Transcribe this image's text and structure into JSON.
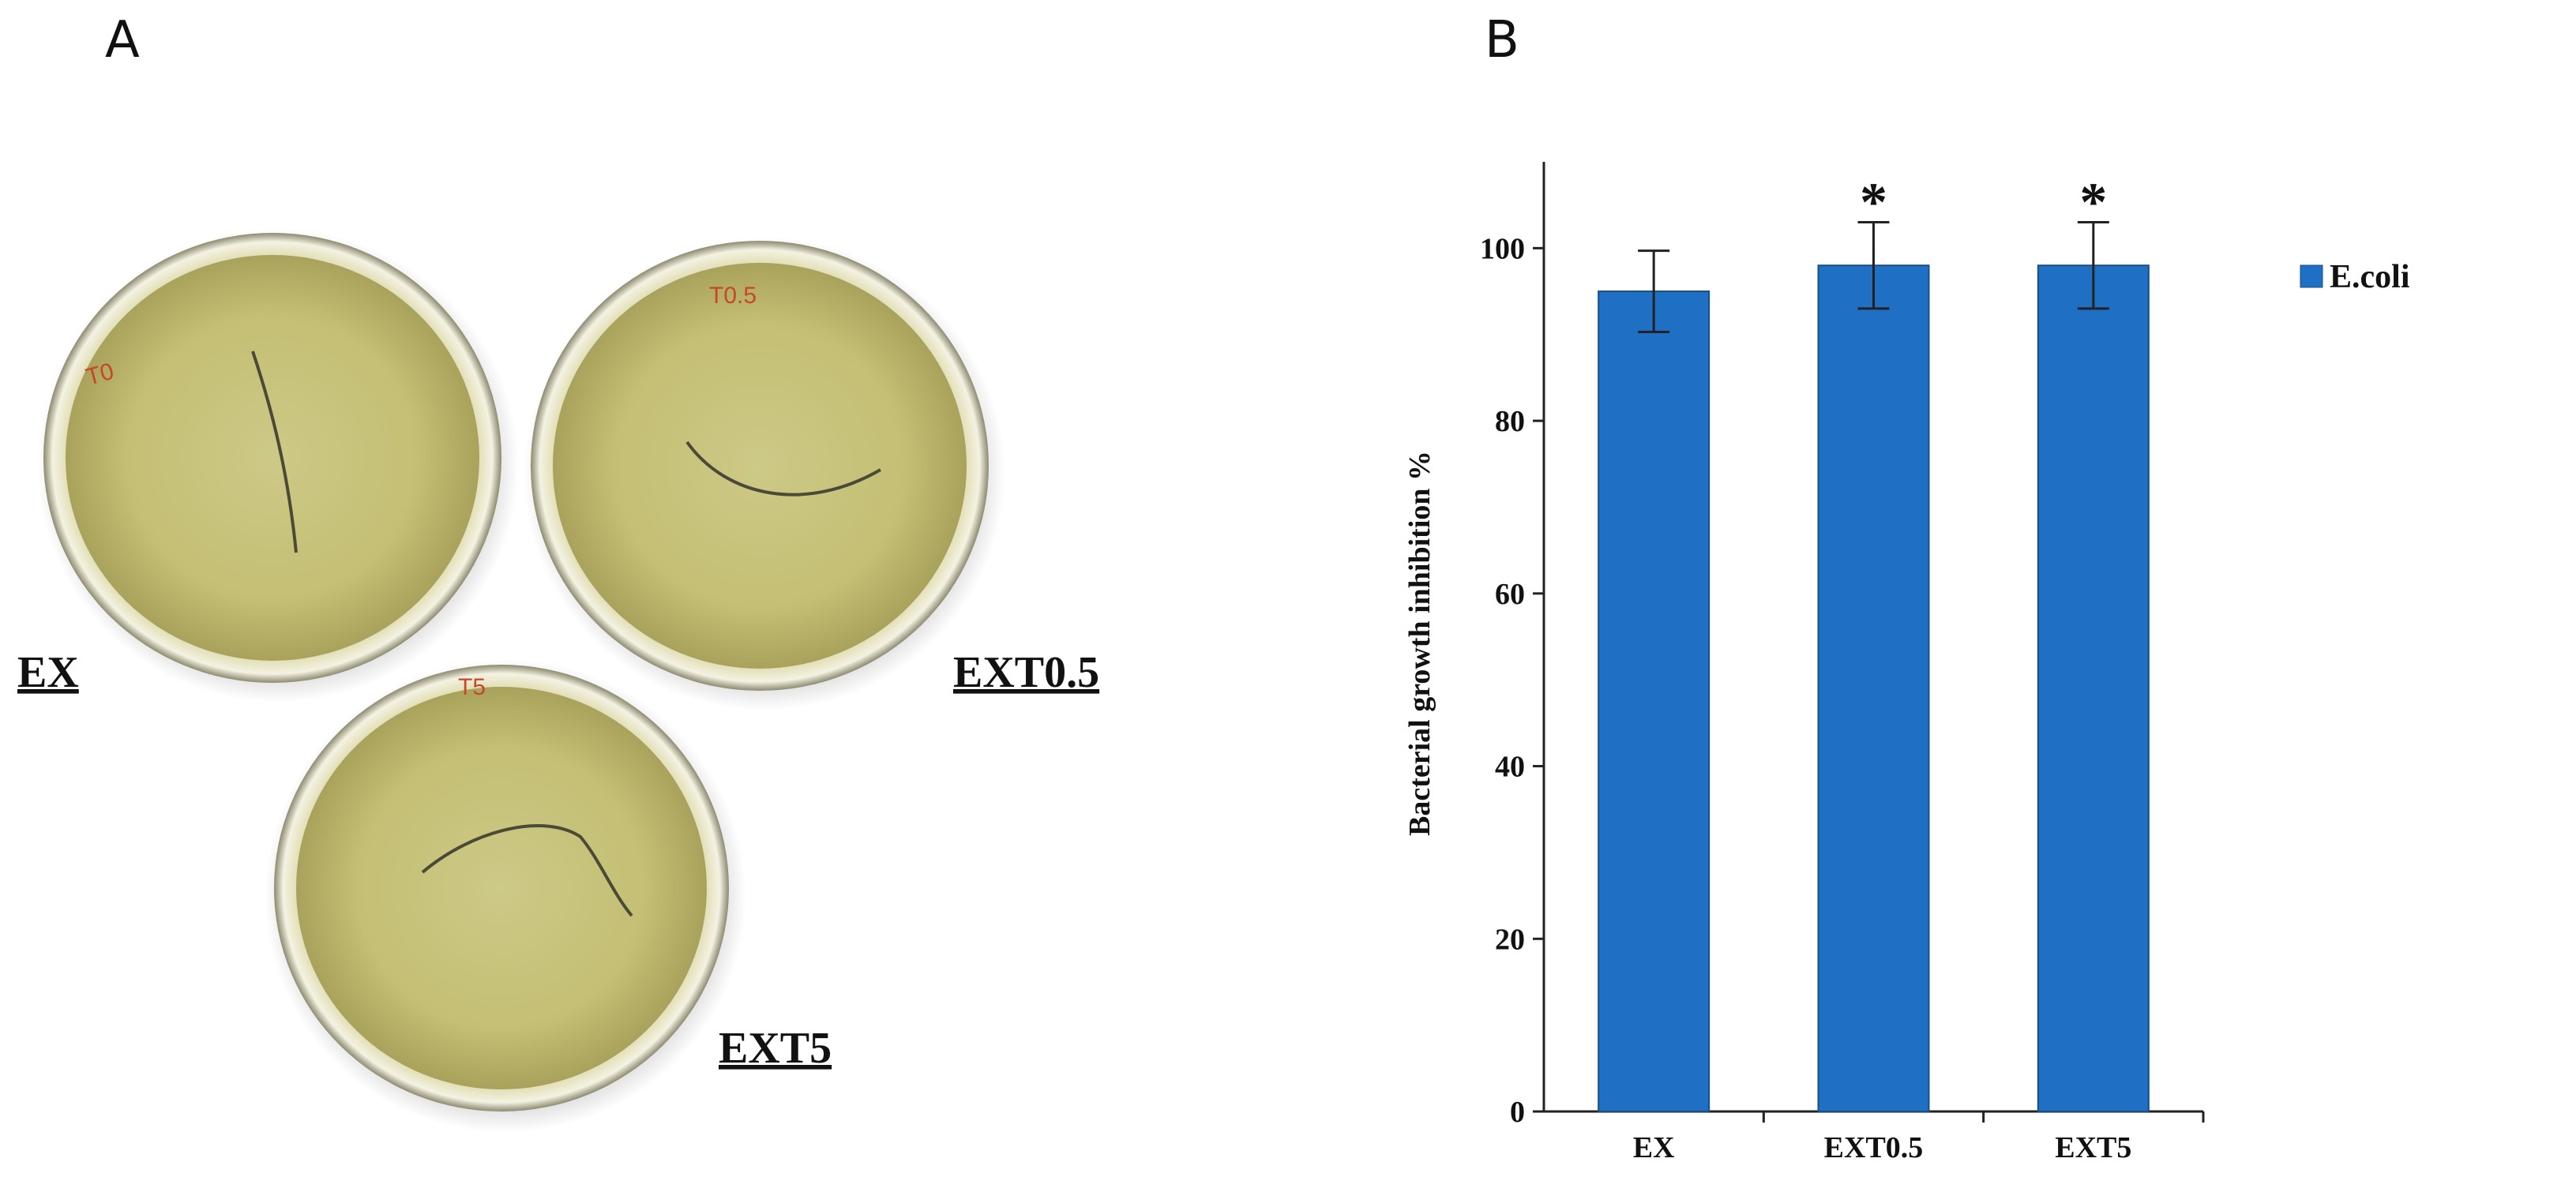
{
  "panel_a": {
    "letter": "A",
    "plates": [
      {
        "label": "EX",
        "mark": "T0"
      },
      {
        "label": "EXT0.5",
        "mark": "T0.5"
      },
      {
        "label": "EXT5",
        "mark": "T5"
      }
    ]
  },
  "panel_b": {
    "letter": "B"
  },
  "colors": {
    "bar": "#1f6fc4",
    "bar_edge": "#1a4f86",
    "agar": "#c7c279"
  },
  "chart_data": {
    "type": "bar",
    "categories": [
      "EX",
      "EXT0.5",
      "EXT5"
    ],
    "series": [
      {
        "name": "E.coli",
        "values": [
          95,
          98,
          98
        ],
        "errors": [
          4.7,
          5,
          5
        ]
      }
    ],
    "significance": [
      "",
      "*",
      "*"
    ],
    "xlabel": "",
    "ylabel": "Bacterial growth inhibition %",
    "ylim": [
      0,
      110
    ],
    "yticks": [
      0,
      20,
      40,
      60,
      80,
      100
    ],
    "grid": false,
    "legend": "top-right"
  }
}
